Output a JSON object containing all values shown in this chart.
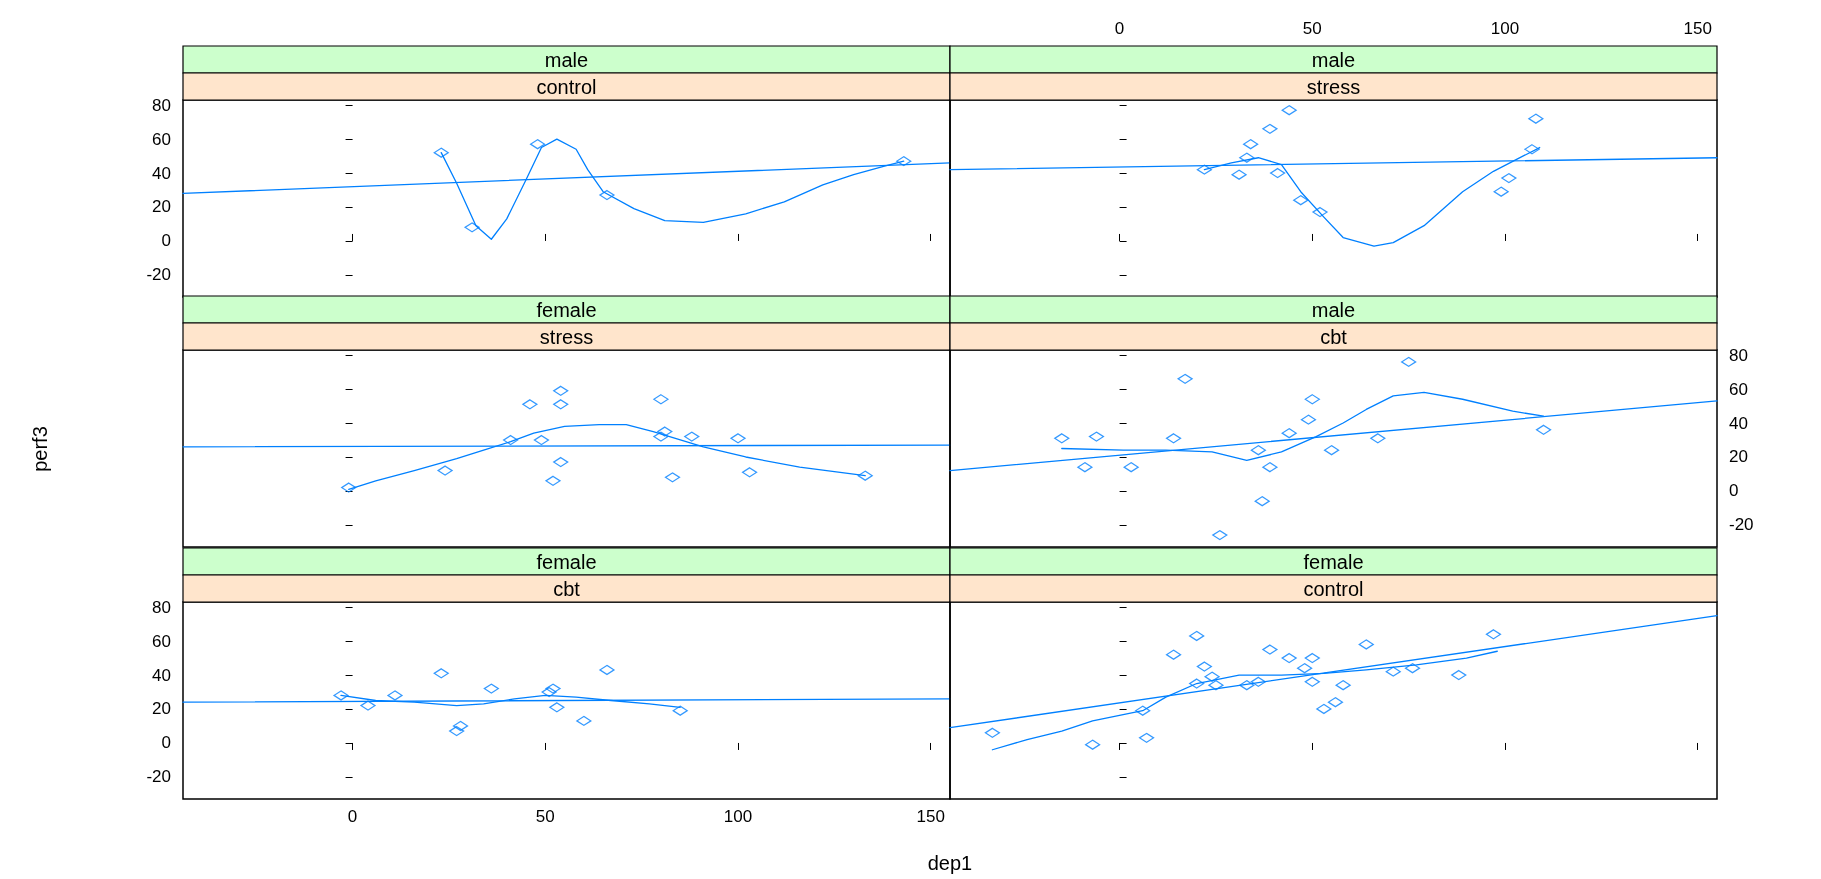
{
  "chart_data": [
    {
      "type": "scatter",
      "title": "male",
      "subtitle": "control",
      "xlim": [
        -44,
        155
      ],
      "xticks": [
        0,
        50,
        100,
        150
      ],
      "ylim": [
        -33,
        83
      ],
      "yticks": [
        -20,
        0,
        20,
        40,
        60,
        80
      ],
      "tick_labels": "y",
      "series": [
        {
          "type": "scatter",
          "color": "#0080ff",
          "marker": "diamond",
          "x": [
            23,
            31,
            48,
            66,
            143
          ],
          "values": [
            52,
            8,
            57,
            27,
            47
          ]
        },
        {
          "type": "line",
          "color": "#0080ff",
          "marker": "none",
          "line_style": "solid",
          "x": [
            -44,
            155
          ],
          "values": [
            28,
            46
          ]
        },
        {
          "type": "line",
          "color": "#0080ff",
          "marker": "none",
          "line_style": "solid",
          "x": [
            23,
            27,
            32,
            36,
            40,
            45,
            49,
            53,
            58,
            61,
            65,
            73,
            81,
            91,
            102,
            112,
            122,
            130,
            138,
            143
          ],
          "values": [
            52,
            34,
            9,
            1,
            13,
            36,
            55,
            60,
            54,
            42,
            29,
            19,
            12,
            11,
            16,
            23,
            33,
            39,
            44,
            47
          ]
        }
      ]
    },
    {
      "type": "scatter",
      "title": "male",
      "subtitle": "stress",
      "xlim": [
        -44,
        155
      ],
      "xticks": [
        0,
        50,
        100,
        150
      ],
      "ylim": [
        -33,
        83
      ],
      "yticks": [
        -20,
        0,
        20,
        40,
        60,
        80
      ],
      "tick_labels": "x",
      "series": [
        {
          "type": "scatter",
          "color": "#0080ff",
          "marker": "diamond",
          "x": [
            22,
            31,
            33,
            34,
            39,
            44,
            41,
            47,
            52,
            99,
            101,
            107,
            108
          ],
          "values": [
            42,
            39,
            49,
            57,
            66,
            77,
            40,
            24,
            17,
            29,
            37,
            54,
            72
          ]
        },
        {
          "type": "line",
          "color": "#0080ff",
          "marker": "none",
          "line_style": "solid",
          "x": [
            -44,
            155
          ],
          "values": [
            42,
            49
          ]
        },
        {
          "type": "line",
          "color": "#0080ff",
          "marker": "none",
          "line_style": "solid",
          "x": [
            22,
            29,
            36,
            42,
            47,
            53,
            58,
            66,
            71,
            79,
            89,
            97,
            103,
            109
          ],
          "values": [
            42,
            46,
            49,
            45,
            29,
            14,
            2,
            -3,
            -1,
            9,
            29,
            41,
            48,
            55
          ]
        }
      ]
    },
    {
      "type": "scatter",
      "title": "female",
      "subtitle": "stress",
      "xlim": [
        -44,
        155
      ],
      "ylim": [
        -33,
        83
      ],
      "yticks": [
        -20,
        0,
        20,
        40,
        60,
        80
      ],
      "tick_labels": false,
      "series": [
        {
          "type": "scatter",
          "color": "#0080ff",
          "marker": "diamond",
          "x": [
            -1,
            24,
            41,
            46,
            49,
            54,
            54,
            54,
            52,
            80,
            81,
            80,
            83,
            88,
            100,
            103,
            133
          ],
          "values": [
            2,
            12,
            30,
            51,
            30,
            59,
            51,
            17,
            6,
            54,
            35,
            32,
            8,
            32,
            31,
            11,
            9
          ]
        },
        {
          "type": "line",
          "color": "#0080ff",
          "marker": "none",
          "line_style": "solid",
          "x": [
            -44,
            155
          ],
          "values": [
            26,
            27
          ]
        },
        {
          "type": "line",
          "color": "#0080ff",
          "marker": "none",
          "line_style": "solid",
          "x": [
            -1,
            6,
            16,
            27,
            34,
            41,
            47,
            55,
            64,
            71,
            78,
            91,
            102,
            116,
            133
          ],
          "values": [
            1,
            6,
            12,
            19,
            24,
            29,
            34,
            38,
            39,
            39,
            35,
            26,
            20,
            14,
            9
          ]
        }
      ]
    },
    {
      "type": "scatter",
      "title": "male",
      "subtitle": "cbt",
      "xlim": [
        -44,
        155
      ],
      "ylim": [
        -33,
        83
      ],
      "yticks": [
        -20,
        0,
        20,
        40,
        60,
        80
      ],
      "tick_labels": "y",
      "series": [
        {
          "type": "scatter",
          "color": "#0080ff",
          "marker": "diamond",
          "x": [
            -15,
            -9,
            -6,
            3,
            14,
            17,
            26,
            36,
            37,
            39,
            44,
            49,
            50,
            55,
            67,
            75,
            110
          ],
          "values": [
            31,
            14,
            32,
            14,
            31,
            66,
            -26,
            24,
            -6,
            14,
            34,
            42,
            54,
            24,
            31,
            76,
            36
          ]
        },
        {
          "type": "line",
          "color": "#0080ff",
          "marker": "none",
          "line_style": "solid",
          "x": [
            -44,
            155
          ],
          "values": [
            12,
            53
          ]
        },
        {
          "type": "line",
          "color": "#0080ff",
          "marker": "none",
          "line_style": "solid",
          "x": [
            -15,
            1,
            12,
            24,
            33,
            42,
            51,
            58,
            64,
            71,
            79,
            89,
            102,
            110
          ],
          "values": [
            25,
            24,
            24,
            23,
            18,
            23,
            32,
            40,
            48,
            56,
            58,
            54,
            47,
            44
          ]
        }
      ]
    },
    {
      "type": "scatter",
      "title": "female",
      "subtitle": "cbt",
      "xlim": [
        -44,
        155
      ],
      "xticks": [
        0,
        50,
        100,
        150
      ],
      "ylim": [
        -33,
        83
      ],
      "yticks": [
        -20,
        0,
        20,
        40,
        60,
        80
      ],
      "series": [
        {
          "type": "scatter",
          "color": "#0080ff",
          "marker": "diamond",
          "x": [
            -3,
            4,
            11,
            23,
            27,
            28,
            36,
            51,
            52,
            53,
            60,
            66,
            85
          ],
          "values": [
            28,
            22,
            28,
            41,
            7,
            10,
            32,
            30,
            32,
            21,
            13,
            43,
            19
          ]
        },
        {
          "type": "line",
          "color": "#0080ff",
          "marker": "none",
          "line_style": "solid",
          "x": [
            -44,
            155
          ],
          "values": [
            24,
            26
          ]
        },
        {
          "type": "line",
          "color": "#0080ff",
          "marker": "none",
          "line_style": "solid",
          "x": [
            -3,
            6,
            16,
            27,
            34,
            42,
            50,
            58,
            67,
            77,
            85
          ],
          "values": [
            28,
            25,
            24,
            22,
            23,
            26,
            28,
            27,
            25,
            23,
            21
          ]
        }
      ]
    },
    {
      "type": "scatter",
      "title": "female",
      "subtitle": "control",
      "xlim": [
        -44,
        155
      ],
      "xticks": [
        0,
        50,
        100,
        150
      ],
      "ylim": [
        -33,
        83
      ],
      "yticks": [
        -20,
        0,
        20,
        40,
        60,
        80
      ],
      "tick_labels": false,
      "xlabel": "dep1",
      "ylabel": "perf3",
      "series": [
        {
          "type": "scatter",
          "color": "#0080ff",
          "marker": "diamond",
          "x": [
            -33,
            -7,
            7,
            6,
            14,
            20,
            20,
            22,
            24,
            25,
            33,
            36,
            39,
            44,
            48,
            50,
            50,
            53,
            56,
            58,
            64,
            71,
            76,
            88,
            97
          ],
          "values": [
            6,
            -1,
            3,
            19,
            52,
            63,
            35,
            45,
            39,
            34,
            34,
            36,
            55,
            50,
            44,
            36,
            50,
            20,
            24,
            34,
            58,
            42,
            44,
            40,
            64
          ]
        },
        {
          "type": "line",
          "color": "#0080ff",
          "marker": "none",
          "line_style": "solid",
          "x": [
            -44,
            155
          ],
          "values": [
            9,
            75
          ]
        },
        {
          "type": "line",
          "color": "#0080ff",
          "marker": "none",
          "line_style": "solid",
          "x": [
            -33,
            -24,
            -15,
            -7,
            6,
            12,
            20,
            31,
            42,
            53,
            64,
            77,
            90,
            98
          ],
          "values": [
            -4,
            2,
            7,
            13,
            19,
            27,
            35,
            40,
            40,
            41,
            43,
            46,
            50,
            54
          ]
        }
      ]
    }
  ]
}
